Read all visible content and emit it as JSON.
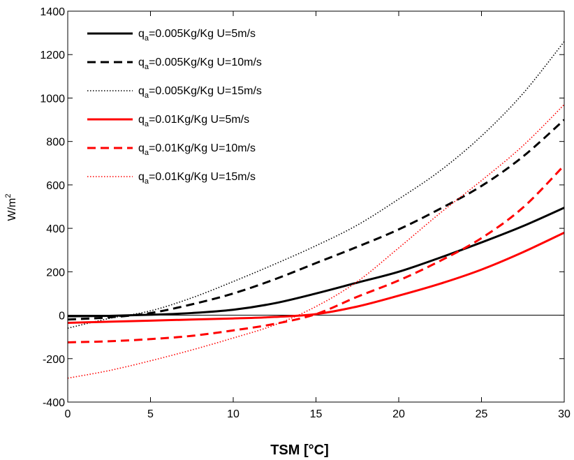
{
  "chart_data": {
    "type": "line",
    "title": "",
    "xlabel": "TSM  [°C]",
    "ylabel": "W/m2",
    "ylabel_main": "W/m",
    "ylabel_sup": "2",
    "xlim": [
      0,
      30
    ],
    "ylim": [
      -400,
      1400
    ],
    "xticks": [
      0,
      5,
      10,
      15,
      20,
      25,
      30
    ],
    "xtick_labels": [
      "0",
      "5",
      "10",
      "15",
      "20",
      "25",
      "30"
    ],
    "yticks": [
      -400,
      -200,
      0,
      200,
      400,
      600,
      800,
      1000,
      1200,
      1400
    ],
    "ytick_labels": [
      "-400",
      "-200",
      "0",
      "200",
      "400",
      "600",
      "800",
      "1000",
      "1200",
      "1400"
    ],
    "grid": false,
    "zero_line": true,
    "legend_position": "top-left",
    "x": [
      0,
      2.5,
      5,
      7.5,
      10,
      12.5,
      15,
      17.5,
      20,
      22.5,
      25,
      27.5,
      30
    ],
    "series": [
      {
        "name": "qa=0.005Kg/Kg  U=5m/s",
        "legend_sub": "a",
        "legend_prefix": "q",
        "legend_suffix": "=0.005Kg/Kg  U=5m/s",
        "color": "#000000",
        "style": "solid",
        "values": [
          -5,
          -3,
          2,
          10,
          25,
          55,
          100,
          150,
          200,
          265,
          335,
          410,
          495
        ]
      },
      {
        "name": "qa=0.005Kg/Kg  U=10m/s",
        "legend_sub": "a",
        "legend_prefix": "q",
        "legend_suffix": "=0.005Kg/Kg  U=10m/s",
        "color": "#000000",
        "style": "dashed",
        "values": [
          -20,
          -10,
          10,
          50,
          100,
          165,
          240,
          315,
          395,
          490,
          595,
          730,
          900
        ]
      },
      {
        "name": "qa=0.005Kg/Kg  U=15m/s",
        "legend_sub": "a",
        "legend_prefix": "q",
        "legend_suffix": "=0.005Kg/Kg  U=15m/s",
        "color": "#000000",
        "style": "dotted",
        "values": [
          -60,
          -15,
          20,
          80,
          155,
          235,
          320,
          415,
          535,
          665,
          825,
          1020,
          1260
        ]
      },
      {
        "name": "qa=0.01Kg/Kg  U=5m/s",
        "legend_sub": "a",
        "legend_prefix": "q",
        "legend_suffix": "=0.01Kg/Kg  U=5m/s",
        "color": "#ff0000",
        "style": "solid",
        "values": [
          -35,
          -30,
          -25,
          -20,
          -15,
          -8,
          5,
          40,
          90,
          145,
          210,
          290,
          380
        ]
      },
      {
        "name": "qa=0.01Kg/Kg  U=10m/s",
        "legend_sub": "a",
        "legend_prefix": "q",
        "legend_suffix": "=0.01Kg/Kg  U=10m/s",
        "color": "#ff0000",
        "style": "dashed",
        "values": [
          -125,
          -120,
          -110,
          -95,
          -70,
          -40,
          5,
          85,
          160,
          250,
          355,
          495,
          690
        ]
      },
      {
        "name": "qa=0.01Kg/Kg  U=15m/s",
        "legend_sub": "a",
        "legend_prefix": "q",
        "legend_suffix": "=0.01Kg/Kg  U=15m/s",
        "color": "#ff0000",
        "style": "dotted",
        "values": [
          -290,
          -255,
          -210,
          -160,
          -105,
          -45,
          40,
          155,
          310,
          470,
          620,
          780,
          970
        ]
      }
    ]
  }
}
